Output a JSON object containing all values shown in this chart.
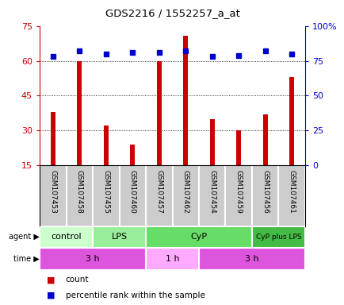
{
  "title": "GDS2216 / 1552257_a_at",
  "samples": [
    "GSM107453",
    "GSM107458",
    "GSM107455",
    "GSM107460",
    "GSM107457",
    "GSM107462",
    "GSM107454",
    "GSM107459",
    "GSM107456",
    "GSM107461"
  ],
  "counts": [
    38,
    60,
    32,
    24,
    60,
    71,
    35,
    30,
    37,
    53
  ],
  "percentiles": [
    78,
    82,
    80,
    81,
    81,
    82,
    78,
    79,
    82,
    80
  ],
  "ylim_left": [
    15,
    75
  ],
  "ylim_right": [
    0,
    100
  ],
  "yticks_left": [
    15,
    30,
    45,
    60,
    75
  ],
  "yticks_right": [
    0,
    25,
    50,
    75,
    100
  ],
  "ytick_labels_right": [
    "0",
    "25",
    "50",
    "75",
    "100%"
  ],
  "bar_color": "#cc0000",
  "dot_color": "#0000cc",
  "agent_groups": [
    {
      "label": "control",
      "start": 0,
      "end": 2,
      "color": "#ccffcc"
    },
    {
      "label": "LPS",
      "start": 2,
      "end": 4,
      "color": "#99ee99"
    },
    {
      "label": "CyP",
      "start": 4,
      "end": 8,
      "color": "#66dd66"
    },
    {
      "label": "CyP plus LPS",
      "start": 8,
      "end": 10,
      "color": "#44bb44"
    }
  ],
  "time_groups": [
    {
      "label": "3 h",
      "start": 0,
      "end": 4,
      "color": "#dd55dd"
    },
    {
      "label": "1 h",
      "start": 4,
      "end": 6,
      "color": "#ffaaff"
    },
    {
      "label": "3 h",
      "start": 6,
      "end": 10,
      "color": "#dd55dd"
    }
  ],
  "grid_color": "black",
  "sample_bg_color": "#cccccc",
  "bar_width": 0.18
}
